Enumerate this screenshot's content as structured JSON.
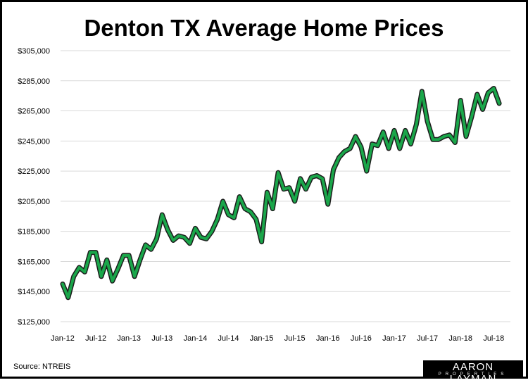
{
  "chart_data": {
    "type": "line",
    "title": "Denton TX Average Home Prices",
    "xlabel": "",
    "ylabel": "",
    "ylim": [
      125000,
      305000
    ],
    "y_ticks": [
      "$125,000",
      "$145,000",
      "$165,000",
      "$185,000",
      "$205,000",
      "$225,000",
      "$245,000",
      "$265,000",
      "$285,000",
      "$305,000"
    ],
    "x_ticks": [
      "Jan-12",
      "Jul-12",
      "Jan-13",
      "Jul-13",
      "Jan-14",
      "Jul-14",
      "Jan-15",
      "Jul-15",
      "Jan-16",
      "Jul-16",
      "Jan-17",
      "Jul-17",
      "Jan-18",
      "Jul-18"
    ],
    "grid": "horizontal",
    "series_color": "#1aa64a",
    "series": [
      {
        "x": [
          "Jan-12",
          "Feb-12",
          "Mar-12",
          "Apr-12",
          "May-12",
          "Jun-12",
          "Jul-12",
          "Aug-12",
          "Sep-12",
          "Oct-12",
          "Nov-12",
          "Dec-12",
          "Jan-13",
          "Feb-13",
          "Mar-13",
          "Apr-13",
          "May-13",
          "Jun-13",
          "Jul-13",
          "Aug-13",
          "Sep-13",
          "Oct-13",
          "Nov-13",
          "Dec-13",
          "Jan-14",
          "Feb-14",
          "Mar-14",
          "Apr-14",
          "May-14",
          "Jun-14",
          "Jul-14",
          "Aug-14",
          "Sep-14",
          "Oct-14",
          "Nov-14",
          "Dec-14",
          "Jan-15",
          "Feb-15",
          "Mar-15",
          "Apr-15",
          "May-15",
          "Jun-15",
          "Jul-15",
          "Aug-15",
          "Sep-15",
          "Oct-15",
          "Nov-15",
          "Dec-15",
          "Jan-16",
          "Feb-16",
          "Mar-16",
          "Apr-16",
          "May-16",
          "Jun-16",
          "Jul-16",
          "Aug-16",
          "Sep-16",
          "Oct-16",
          "Nov-16",
          "Dec-16",
          "Jan-17",
          "Feb-17",
          "Mar-17",
          "Apr-17",
          "May-17",
          "Jun-17",
          "Jul-17",
          "Aug-17",
          "Sep-17",
          "Oct-17",
          "Nov-17",
          "Dec-17",
          "Jan-18",
          "Feb-18",
          "Mar-18",
          "Apr-18",
          "May-18",
          "Jun-18",
          "Jul-18",
          "Aug-18"
        ],
        "values": [
          150000,
          141000,
          155000,
          161000,
          158000,
          171000,
          171000,
          155000,
          166000,
          152000,
          160000,
          169000,
          169000,
          155000,
          166000,
          176000,
          173000,
          180000,
          196000,
          186000,
          179000,
          182000,
          181000,
          177000,
          187000,
          181000,
          180000,
          185000,
          193000,
          205000,
          196000,
          194000,
          208000,
          200000,
          198000,
          193000,
          178000,
          211000,
          200000,
          224000,
          213000,
          214000,
          205000,
          220000,
          213000,
          221000,
          222000,
          220000,
          203000,
          226000,
          234000,
          238000,
          240000,
          248000,
          241000,
          225000,
          243000,
          242000,
          251000,
          240000,
          252000,
          240000,
          252000,
          243000,
          256000,
          278000,
          258000,
          246000,
          246000,
          248000,
          249000,
          244000,
          272000,
          248000,
          261000,
          276000,
          266000,
          277000,
          280000,
          270000
        ]
      }
    ]
  },
  "footer": {
    "source": "Source: NTREIS",
    "logo_main": "AARON LAYMAN",
    "logo_sub": "PROPERTIES"
  }
}
